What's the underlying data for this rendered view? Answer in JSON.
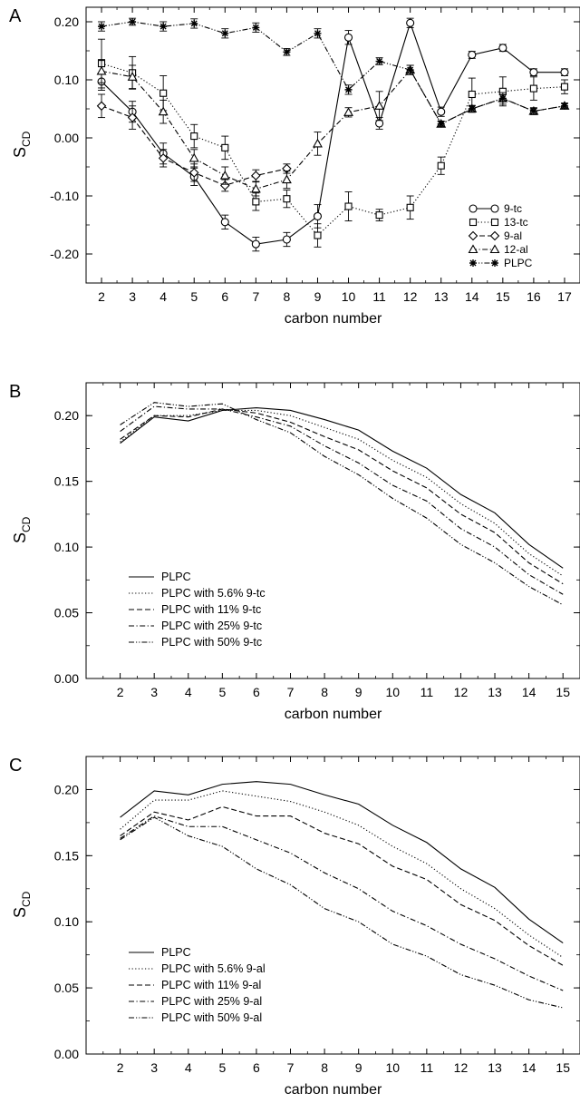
{
  "chart_data": [
    {
      "panel_label": "A",
      "type": "line",
      "xlabel": "carbon number",
      "ylabel": "S",
      "ylabel_sub": "CD",
      "xlim": [
        1.5,
        17.5
      ],
      "ylim": [
        -0.25,
        0.225
      ],
      "x_ticks": [
        2,
        3,
        4,
        5,
        6,
        7,
        8,
        9,
        10,
        11,
        12,
        13,
        14,
        15,
        16,
        17
      ],
      "y_ticks": [
        -0.2,
        -0.1,
        0.0,
        0.1,
        0.2
      ],
      "y_tick_labels": [
        "-0.20",
        "-0.10",
        "0.00",
        "0.10",
        "0.20"
      ],
      "legend_position": "bottom-right",
      "grid": false,
      "series": [
        {
          "name": "9-tc",
          "marker": "circle",
          "dash": "solid",
          "x": [
            2,
            3,
            4,
            5,
            6,
            7,
            8,
            9,
            10,
            11,
            12,
            13,
            14,
            15,
            16,
            17
          ],
          "values": [
            0.097,
            0.045,
            -0.027,
            -0.067,
            -0.145,
            -0.183,
            -0.175,
            -0.135,
            0.173,
            0.025,
            0.198,
            0.045,
            0.143,
            0.155,
            0.113,
            0.113
          ],
          "errors": [
            0.015,
            0.018,
            0.018,
            0.015,
            0.012,
            0.012,
            0.012,
            0.02,
            0.012,
            0.01,
            0.008,
            0.008,
            0.006,
            0.006,
            0.006,
            0.006
          ]
        },
        {
          "name": "13-tc",
          "marker": "square",
          "dash": "dotted",
          "x": [
            2,
            3,
            4,
            5,
            6,
            7,
            8,
            9,
            10,
            11,
            12,
            13,
            14,
            15,
            16,
            17
          ],
          "values": [
            0.128,
            0.112,
            0.077,
            0.003,
            -0.017,
            -0.11,
            -0.105,
            -0.168,
            -0.118,
            -0.133,
            -0.12,
            -0.048,
            0.075,
            0.08,
            0.085,
            0.088
          ],
          "errors": [
            0.042,
            0.028,
            0.03,
            0.02,
            0.02,
            0.015,
            0.015,
            0.02,
            0.025,
            0.01,
            0.02,
            0.015,
            0.028,
            0.025,
            0.02,
            0.012
          ]
        },
        {
          "name": "9-al",
          "marker": "diamond",
          "dash": "dashed",
          "x": [
            2,
            3,
            4,
            5,
            6,
            7,
            8
          ],
          "values": [
            0.055,
            0.035,
            -0.035,
            -0.06,
            -0.082,
            -0.065,
            -0.053
          ],
          "errors": [
            0.02,
            0.02,
            0.015,
            0.015,
            0.01,
            0.01,
            0.008
          ]
        },
        {
          "name": "12-al",
          "marker": "triangle",
          "dash": "dashdot",
          "x": [
            2,
            3,
            4,
            5,
            6,
            7,
            8,
            9,
            10,
            11,
            12,
            13,
            14,
            15,
            16,
            17
          ],
          "values": [
            0.115,
            0.105,
            0.045,
            -0.035,
            -0.065,
            -0.088,
            -0.072,
            -0.01,
            0.044,
            0.055,
            0.117,
            0.024,
            0.05,
            0.068,
            0.046,
            0.055
          ],
          "errors": [
            0.02,
            0.02,
            0.02,
            0.015,
            0.015,
            0.012,
            0.015,
            0.02,
            0.008,
            0.025,
            0.008,
            0.005,
            0.006,
            0.01,
            0.006,
            0.005
          ]
        },
        {
          "name": "PLPC",
          "marker": "star",
          "dash": "dashdotdot",
          "x": [
            2,
            3,
            4,
            5,
            6,
            7,
            8,
            9,
            10,
            11,
            12,
            13,
            14,
            15,
            16,
            17
          ],
          "values": [
            0.192,
            0.2,
            0.192,
            0.197,
            0.18,
            0.19,
            0.148,
            0.18,
            0.083,
            0.132,
            0.117,
            0.024,
            0.05,
            0.068,
            0.046,
            0.055
          ],
          "errors": [
            0.008,
            0.006,
            0.008,
            0.008,
            0.008,
            0.008,
            0.006,
            0.008,
            0.008,
            0.006,
            0.008,
            0.004,
            0.005,
            0.006,
            0.005,
            0.004
          ]
        }
      ]
    },
    {
      "panel_label": "B",
      "type": "line",
      "xlabel": "carbon number",
      "ylabel": "S",
      "ylabel_sub": "CD",
      "xlim": [
        1.0,
        15.5
      ],
      "ylim": [
        0.0,
        0.225
      ],
      "x_ticks": [
        2,
        3,
        4,
        5,
        6,
        7,
        8,
        9,
        10,
        11,
        12,
        13,
        14,
        15
      ],
      "y_ticks": [
        0.0,
        0.05,
        0.1,
        0.15,
        0.2
      ],
      "y_tick_labels": [
        "0.00",
        "0.05",
        "0.10",
        "0.15",
        "0.20"
      ],
      "legend_position": "bottom-left",
      "grid": false,
      "x": [
        2,
        3,
        4,
        5,
        6,
        7,
        8,
        9,
        10,
        11,
        12,
        13,
        14,
        15
      ],
      "series": [
        {
          "name": "PLPC",
          "dash": "solid",
          "values": [
            0.179,
            0.199,
            0.196,
            0.204,
            0.206,
            0.204,
            0.197,
            0.189,
            0.173,
            0.16,
            0.14,
            0.126,
            0.102,
            0.084
          ]
        },
        {
          "name": "PLPC with 5.6% 9-tc",
          "dash": "dotted",
          "values": [
            0.18,
            0.2,
            0.2,
            0.204,
            0.204,
            0.2,
            0.191,
            0.182,
            0.166,
            0.153,
            0.133,
            0.118,
            0.095,
            0.078
          ]
        },
        {
          "name": "PLPC with 11% 9-tc",
          "dash": "dashed",
          "values": [
            0.182,
            0.2,
            0.199,
            0.205,
            0.202,
            0.195,
            0.184,
            0.174,
            0.158,
            0.145,
            0.125,
            0.111,
            0.088,
            0.072
          ]
        },
        {
          "name": "PLPC with 25% 9-tc",
          "dash": "dashdot",
          "values": [
            0.188,
            0.207,
            0.205,
            0.205,
            0.199,
            0.192,
            0.177,
            0.164,
            0.147,
            0.135,
            0.114,
            0.1,
            0.079,
            0.064
          ]
        },
        {
          "name": "PLPC with 50% 9-tc",
          "dash": "dashdotdot",
          "values": [
            0.193,
            0.21,
            0.207,
            0.209,
            0.197,
            0.187,
            0.169,
            0.155,
            0.137,
            0.122,
            0.102,
            0.088,
            0.07,
            0.056
          ]
        }
      ]
    },
    {
      "panel_label": "C",
      "type": "line",
      "xlabel": "carbon number",
      "ylabel": "S",
      "ylabel_sub": "CD",
      "xlim": [
        1.0,
        15.5
      ],
      "ylim": [
        0.0,
        0.225
      ],
      "x_ticks": [
        2,
        3,
        4,
        5,
        6,
        7,
        8,
        9,
        10,
        11,
        12,
        13,
        14,
        15
      ],
      "y_ticks": [
        0.0,
        0.05,
        0.1,
        0.15,
        0.2
      ],
      "y_tick_labels": [
        "0.00",
        "0.05",
        "0.10",
        "0.15",
        "0.20"
      ],
      "legend_position": "bottom-left",
      "grid": false,
      "x": [
        2,
        3,
        4,
        5,
        6,
        7,
        8,
        9,
        10,
        11,
        12,
        13,
        14,
        15
      ],
      "series": [
        {
          "name": "PLPC",
          "dash": "solid",
          "values": [
            0.179,
            0.199,
            0.196,
            0.204,
            0.206,
            0.204,
            0.196,
            0.189,
            0.173,
            0.16,
            0.14,
            0.126,
            0.102,
            0.084
          ]
        },
        {
          "name": "PLPC with 5.6% 9-al",
          "dash": "dotted",
          "values": [
            0.17,
            0.192,
            0.192,
            0.199,
            0.195,
            0.191,
            0.183,
            0.173,
            0.157,
            0.144,
            0.125,
            0.11,
            0.09,
            0.073
          ]
        },
        {
          "name": "PLPC with 11% 9-al",
          "dash": "dashed",
          "values": [
            0.165,
            0.183,
            0.177,
            0.187,
            0.18,
            0.18,
            0.167,
            0.159,
            0.142,
            0.132,
            0.113,
            0.101,
            0.082,
            0.067
          ]
        },
        {
          "name": "PLPC with 25% 9-al",
          "dash": "dashdot",
          "values": [
            0.163,
            0.18,
            0.172,
            0.172,
            0.162,
            0.152,
            0.137,
            0.125,
            0.108,
            0.097,
            0.083,
            0.072,
            0.059,
            0.048
          ]
        },
        {
          "name": "PLPC with 50% 9-al",
          "dash": "dashdotdot",
          "values": [
            0.162,
            0.179,
            0.165,
            0.157,
            0.14,
            0.128,
            0.11,
            0.1,
            0.083,
            0.074,
            0.06,
            0.052,
            0.041,
            0.035
          ]
        }
      ]
    }
  ]
}
